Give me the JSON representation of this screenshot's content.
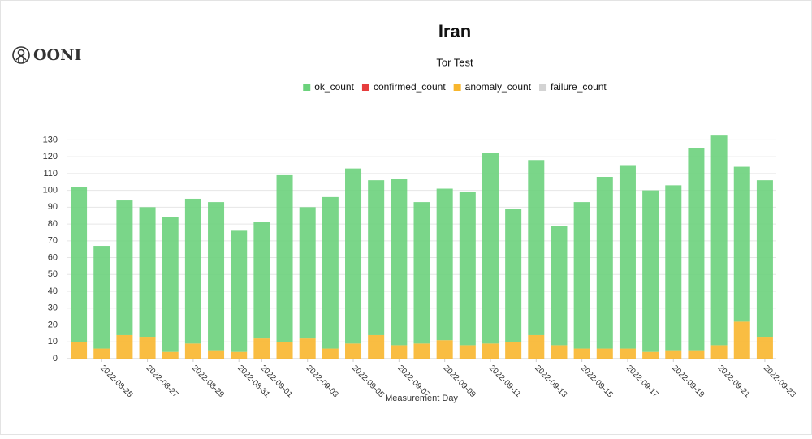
{
  "logo": "OONI",
  "chart_data": {
    "type": "stacked_bar",
    "title": "Iran",
    "subtitle": "Tor Test",
    "x_label": "Measurement Day",
    "categories": [
      null,
      "2022-08-25",
      null,
      "2022-08-27",
      null,
      "2022-08-29",
      null,
      "2022-08-31",
      "2022-09-01",
      null,
      "2022-09-03",
      null,
      "2022-09-05",
      null,
      "2022-09-07",
      null,
      "2022-09-09",
      null,
      "2022-09-11",
      null,
      "2022-09-13",
      null,
      "2022-09-15",
      null,
      "2022-09-17",
      null,
      "2022-09-19",
      null,
      "2022-09-21",
      null,
      "2022-09-23"
    ],
    "series": [
      {
        "name": "anomaly_count",
        "color": "#f8b62d",
        "values": [
          10,
          6,
          14,
          13,
          4,
          9,
          5,
          4,
          12,
          10,
          12,
          6,
          9,
          14,
          8,
          9,
          11,
          8,
          9,
          10,
          14,
          8,
          6,
          6,
          6,
          4,
          5,
          5,
          8,
          22,
          13
        ]
      },
      {
        "name": "ok_count",
        "color": "#6bd27c",
        "values": [
          92,
          61,
          80,
          77,
          80,
          86,
          88,
          72,
          69,
          99,
          78,
          90,
          104,
          92,
          99,
          84,
          90,
          91,
          113,
          79,
          104,
          71,
          87,
          102,
          109,
          96,
          98,
          120,
          125,
          92,
          93
        ]
      },
      {
        "name": "confirmed_count",
        "color": "#e63d3d",
        "values": [
          0,
          0,
          0,
          0,
          0,
          0,
          0,
          0,
          0,
          0,
          0,
          0,
          0,
          0,
          0,
          0,
          0,
          0,
          0,
          0,
          0,
          0,
          0,
          0,
          0,
          0,
          0,
          0,
          0,
          0,
          0
        ]
      },
      {
        "name": "failure_count",
        "color": "#d3d3d3",
        "values": [
          0,
          0,
          0,
          0,
          0,
          0,
          0,
          0,
          0,
          0,
          0,
          0,
          0,
          0,
          0,
          0,
          0,
          0,
          0,
          0,
          0,
          0,
          0,
          0,
          0,
          0,
          0,
          0,
          0,
          0,
          0
        ]
      }
    ],
    "legend_order": [
      "ok_count",
      "confirmed_count",
      "anomaly_count",
      "failure_count"
    ],
    "ylim": [
      0,
      135
    ],
    "yticks": [
      0,
      10,
      20,
      30,
      40,
      50,
      60,
      70,
      80,
      90,
      100,
      110,
      120,
      130
    ],
    "grid": true
  }
}
